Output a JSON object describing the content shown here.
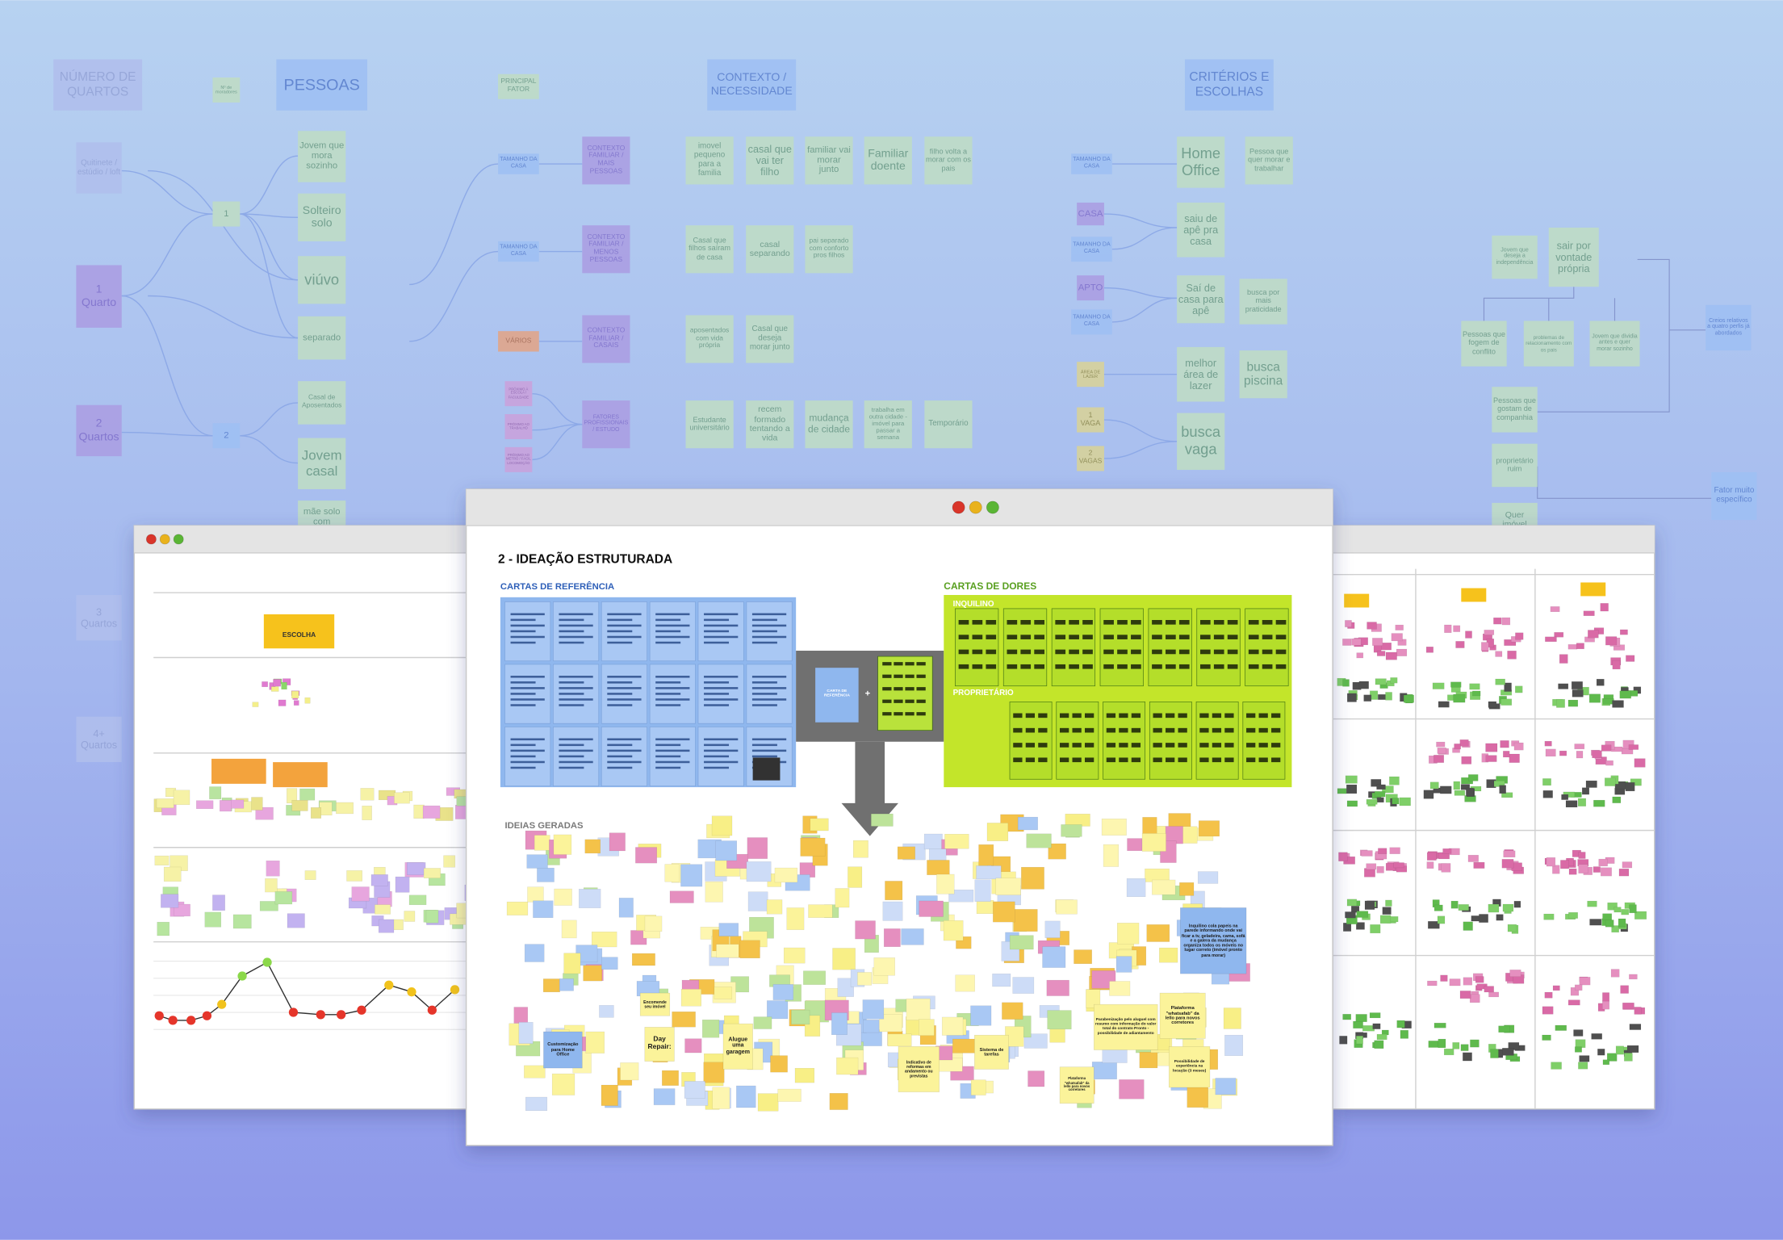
{
  "background_map": {
    "headers": [
      "NÚMERO DE QUARTOS",
      "PESSOAS",
      "Nº de moradores",
      "PRINCIPAL FATOR",
      "CONTEXTO / NECESSIDADE",
      "CRITÉRIOS E ESCOLHAS"
    ],
    "nodes": [
      "Quitinete / estúdio / loft",
      "1 Quarto",
      "2 Quartos",
      "3 Quartos",
      "4+ Quartos",
      "1",
      "2",
      "Jovem que mora sozinho",
      "Solteiro solo",
      "viúvo",
      "separado",
      "Casal de Aposentados",
      "Jovem casal",
      "mãe solo com",
      "TAMANHO DA CASA",
      "TAMANHO DA CASA",
      "VÁRIOS",
      "PRÓXIMO À ESCOLA / FACULDADE",
      "PRÓXIMO AO TRABALHO",
      "PRÓXIMO AO METRÔ / FÁCIL LOCOMOÇÃO",
      "CONTEXTO FAMILIAR / MAIS PESSOAS",
      "CONTEXTO FAMILIAR / MENOS PESSOAS",
      "CONTEXTO FAMILIAR / CASAIS",
      "FATORES PROFISSIONAIS / ESTUDO",
      "imovel pequeno para a familia",
      "casal que vai ter filho",
      "familiar vai morar junto",
      "Familiar doente",
      "filho volta a morar com os pais",
      "Casal que filhos saíram de casa",
      "casal separando",
      "pai separado com conforto pros filhos",
      "aposentados com vida própria",
      "Casal que deseja morar junto",
      "Estudante universitário",
      "recem formado tentando a vida",
      "mudança de cidade",
      "trabalha em outra cidade - imóvel para passar a semana",
      "Temporário",
      "TAMANHO DA CASA",
      "Home Office",
      "Pessoa que quer morar e trabalhar",
      "CASA",
      "TAMANHO DA CASA",
      "saiu de apê pra casa",
      "APTO",
      "TAMANHO DA CASA",
      "Saí de casa para apê",
      "busca por mais praticidade",
      "ÁREA DE LAZER",
      "melhor área de lazer",
      "busca piscina",
      "1 VAGA",
      "2 VAGAS",
      "busca vaga",
      "Jovem que deseja a independência",
      "sair por vontade própria",
      "Pessoas que fogem de conflito",
      "problemas de relacionamento com os pais",
      "Jovem que dividia antes e quer morar sozinho",
      "Creios relativos a quatro perfis já abordados",
      "Pessoas que gostam de companhia",
      "proprietário ruim",
      "Fator muito específico",
      "Quer imóvel"
    ]
  },
  "left_window": {
    "tag": "ESCOLHA"
  },
  "main_window": {
    "title": "2 - IDEAÇÃO ESTRUTURADA",
    "reference_cards_label": "CARTAS DE REFERÊNCIA",
    "pain_cards_label": "CARTAS DE DORES",
    "tenant_label": "INQUILINO",
    "owner_label": "PROPRIETÁRIO",
    "reference_card": "CARTA DE REFERÊNCIA",
    "plus": "+",
    "ideas_label": "IDEIAS GERADAS",
    "ideas": [
      "Customização para Home Office",
      "Day Repair:",
      "Alugue uma garagem",
      "Encomende seu imóvel",
      "Inquilino cola papeis na parede informando onde vai ficar a tv, geladeira, cama, sofá e a galera da mudança organiza todos os móveis no lugar correto (imóvel pronto para morar)",
      "Plataforma \"whatsafab\" da lello para novos corretores",
      "Possibilidade de experiência na locação (3 meses)",
      "Parabenização pelo aluguel com resumo com informação do valor total do contrato Pronto - possibilidade de adiantamento",
      "Indicativo de reformas em andamento ou previstas",
      "Plataforma \"whatsafab\" da lello para novos corretores",
      "Sistema de tarefas"
    ]
  }
}
